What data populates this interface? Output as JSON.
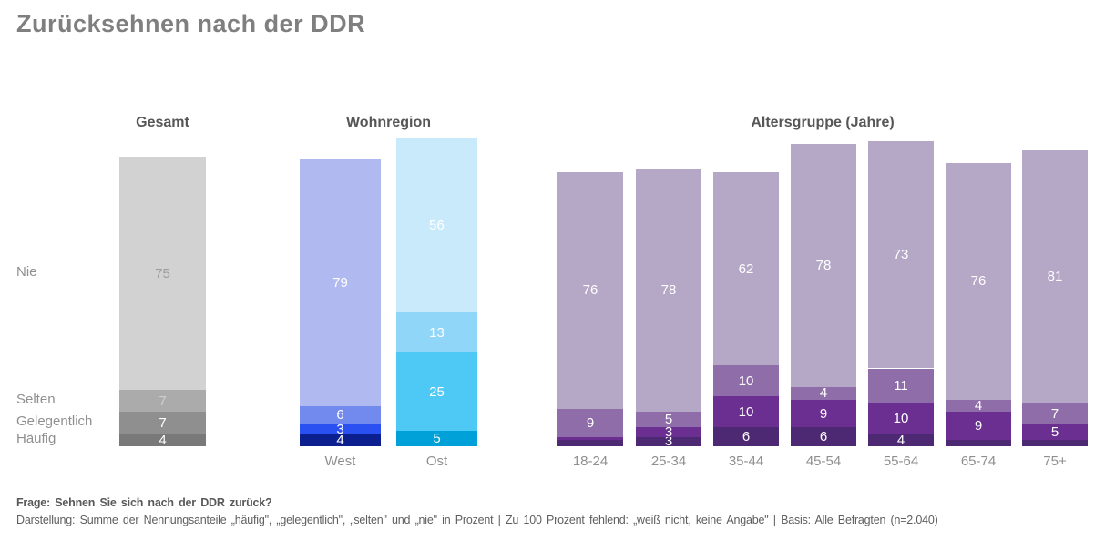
{
  "title": "Zurücksehnen nach der DDR",
  "footer": {
    "question": "Frage: Sehnen Sie sich nach der DDR zurück?",
    "note": "Darstellung: Summe der Nennungsanteile „häufig\", „gelegentlich\", „selten\" und „nie\" in Prozent | Zu 100 Prozent fehlend: „weiß nicht, keine Angabe\" | Basis: Alle Befragten (n=2.040)"
  },
  "chart_data": {
    "type": "bar",
    "stacked": true,
    "unit": "percent",
    "value_axis_max": 100,
    "label_min_value": 3,
    "stack_order_bottom_to_top": [
      "haeufig",
      "gelegentlich",
      "selten",
      "nie"
    ],
    "categories": {
      "nie": "Nie",
      "selten": "Selten",
      "gelegentlich": "Gelegentlich",
      "haeufig": "Häufig"
    },
    "palettes": {
      "gray": {
        "fill": {
          "nie": "#d2d2d2",
          "selten": "#ababab",
          "gelegentlich": "#8f8f8f",
          "haeufig": "#797979"
        },
        "text": {
          "nie": "#9c9c9c",
          "selten": "#cfcfcf",
          "gelegentlich": "#ffffff",
          "haeufig": "#ffffff"
        }
      },
      "west": {
        "fill": {
          "nie": "#b1b9f1",
          "selten": "#7289ee",
          "gelegentlich": "#2b50f2",
          "haeufig": "#0b1f8e"
        },
        "text": {
          "nie": "#ffffff",
          "selten": "#ffffff",
          "gelegentlich": "#ffffff",
          "haeufig": "#ffffff"
        }
      },
      "ost": {
        "fill": {
          "nie": "#c9eafa",
          "selten": "#8fd6f8",
          "gelegentlich": "#4ec8f4",
          "haeufig": "#00a0d8"
        },
        "text": {
          "nie": "#ffffff",
          "selten": "#ffffff",
          "gelegentlich": "#ffffff",
          "haeufig": "#ffffff"
        }
      },
      "alter": {
        "fill": {
          "nie": "#b5a8c7",
          "selten": "#8e6da8",
          "gelegentlich": "#6b2e91",
          "haeufig": "#4e2973"
        },
        "text": {
          "nie": "#ffffff",
          "selten": "#ffffff",
          "gelegentlich": "#ffffff",
          "haeufig": "#ffffff"
        }
      }
    },
    "groups": [
      {
        "id": "gesamt",
        "title": "Gesamt",
        "bars": [
          {
            "x_label": "",
            "palette": "gray",
            "values": {
              "nie": 75,
              "selten": 7,
              "gelegentlich": 7,
              "haeufig": 4
            }
          }
        ]
      },
      {
        "id": "wohnregion",
        "title": "Wohnregion",
        "bars": [
          {
            "x_label": "West",
            "palette": "west",
            "values": {
              "nie": 79,
              "selten": 6,
              "gelegentlich": 3,
              "haeufig": 4
            }
          },
          {
            "x_label": "Ost",
            "palette": "ost",
            "values": {
              "nie": 56,
              "selten": 13,
              "gelegentlich": 25,
              "haeufig": 5
            }
          }
        ]
      },
      {
        "id": "alters",
        "title": "Altersgruppe (Jahre)",
        "bars": [
          {
            "x_label": "18-24",
            "palette": "alter",
            "values": {
              "nie": 76,
              "selten": 9,
              "gelegentlich": 1,
              "haeufig": 2
            }
          },
          {
            "x_label": "25-34",
            "palette": "alter",
            "values": {
              "nie": 78,
              "selten": 5,
              "gelegentlich": 3,
              "haeufig": 3
            }
          },
          {
            "x_label": "35-44",
            "palette": "alter",
            "values": {
              "nie": 62,
              "selten": 10,
              "gelegentlich": 10,
              "haeufig": 6
            }
          },
          {
            "x_label": "45-54",
            "palette": "alter",
            "values": {
              "nie": 78,
              "selten": 4,
              "gelegentlich": 9,
              "haeufig": 6
            }
          },
          {
            "x_label": "55-64",
            "palette": "alter",
            "values": {
              "nie": 73,
              "selten": 11,
              "gelegentlich": 10,
              "haeufig": 4
            }
          },
          {
            "x_label": "65-74",
            "palette": "alter",
            "values": {
              "nie": 76,
              "selten": 4,
              "gelegentlich": 9,
              "haeufig": 2
            }
          },
          {
            "x_label": "75+",
            "palette": "alter",
            "values": {
              "nie": 81,
              "selten": 7,
              "gelegentlich": 5,
              "haeufig": 2
            }
          }
        ]
      }
    ]
  }
}
